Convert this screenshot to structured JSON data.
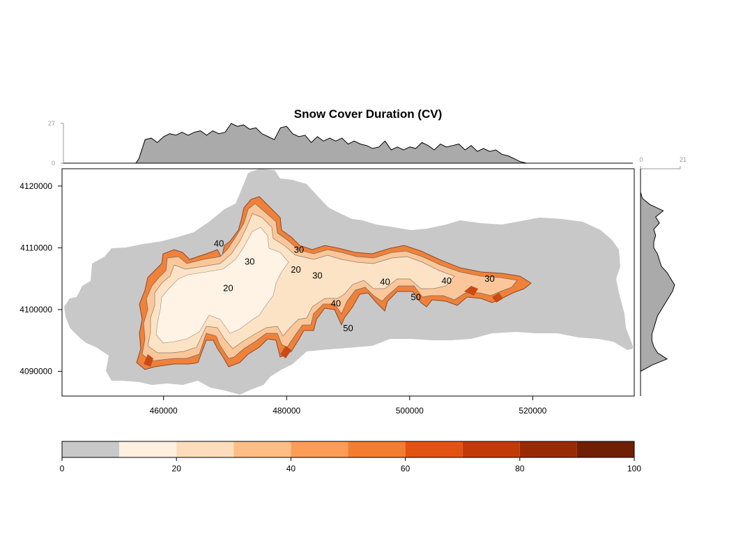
{
  "chart_data": {
    "type": "heatmap",
    "title": "Snow Cover Duration (CV)",
    "xlabel": "",
    "ylabel": "",
    "x_ticks": [
      460000,
      480000,
      500000,
      520000
    ],
    "x_tick_labels": [
      "460000",
      "480000",
      "500000",
      "520000"
    ],
    "y_ticks": [
      4090000,
      4100000,
      4110000,
      4120000
    ],
    "y_tick_labels": [
      "4090000",
      "4100000",
      "4110000",
      "4120000"
    ],
    "xlim": [
      443500,
      536500
    ],
    "ylim": [
      4086000,
      4122800
    ],
    "top_histogram": {
      "ylim": [
        0,
        27
      ],
      "tick_labels": [
        "0",
        "27"
      ],
      "x": [
        450000,
        455500,
        456000,
        457000,
        458000,
        459000,
        460000,
        461000,
        462000,
        463000,
        464000,
        465000,
        466000,
        467000,
        468000,
        469000,
        470000,
        471000,
        472000,
        473000,
        474000,
        475000,
        476000,
        477000,
        478000,
        479000,
        480000,
        481000,
        482000,
        483000,
        484000,
        485000,
        486000,
        487000,
        488000,
        489000,
        490000,
        491000,
        492000,
        493000,
        494000,
        495000,
        496000,
        497000,
        498000,
        499000,
        500000,
        501000,
        502000,
        503000,
        504000,
        505000,
        506000,
        507000,
        508000,
        509000,
        510000,
        511000,
        512000,
        513000,
        514000,
        515000,
        516000,
        517000,
        518000,
        519000
      ],
      "values": [
        0,
        0,
        3,
        16,
        17,
        14,
        18,
        20,
        19,
        21,
        19,
        21,
        22,
        19,
        22,
        20,
        21,
        27,
        25,
        26,
        23,
        24,
        20,
        18,
        16,
        24,
        25,
        20,
        18,
        19,
        14,
        18,
        15,
        17,
        15,
        17,
        13,
        15,
        13,
        12,
        10,
        11,
        15,
        9,
        11,
        9,
        11,
        10,
        14,
        12,
        9,
        13,
        11,
        12,
        13,
        9,
        12,
        8,
        10,
        8,
        9,
        6,
        5,
        3,
        1,
        0
      ]
    },
    "right_histogram": {
      "xlim": [
        0,
        21
      ],
      "tick_labels": [
        "0",
        "21"
      ],
      "y": [
        4119000,
        4118000,
        4117000,
        4116000,
        4115000,
        4114000,
        4113000,
        4112000,
        4111000,
        4110000,
        4109000,
        4108000,
        4107000,
        4106000,
        4105000,
        4104000,
        4103000,
        4102000,
        4101000,
        4100000,
        4099000,
        4098000,
        4097000,
        4096000,
        4095000,
        4094000,
        4093000,
        4092000,
        4091000,
        4090000
      ],
      "values": [
        0,
        1,
        5,
        12,
        8,
        10,
        7,
        8,
        7,
        7,
        9,
        10,
        11,
        14,
        16,
        18,
        17,
        15,
        13,
        11,
        9,
        8,
        7,
        6,
        6,
        7,
        9,
        14,
        6,
        0
      ]
    },
    "colorbar": {
      "breaks": [
        0,
        10,
        20,
        30,
        40,
        50,
        60,
        70,
        80,
        90,
        100
      ],
      "tick_values": [
        0,
        20,
        40,
        60,
        80,
        100
      ],
      "tick_labels": [
        "0",
        "20",
        "40",
        "60",
        "80",
        "100"
      ],
      "colors": [
        "#c8c8c8",
        "#fff0e0",
        "#fddcbc",
        "#fdbe85",
        "#fd9c55",
        "#f47d30",
        "#e25312",
        "#c23a08",
        "#9a2a06",
        "#701f05"
      ]
    },
    "contour_labels": [
      {
        "text": "40",
        "x": 469000,
        "y": 4110200
      },
      {
        "text": "30",
        "x": 474000,
        "y": 4107300
      },
      {
        "text": "20",
        "x": 470500,
        "y": 4103000
      },
      {
        "text": "30",
        "x": 482000,
        "y": 4109200
      },
      {
        "text": "20",
        "x": 481500,
        "y": 4106000
      },
      {
        "text": "30",
        "x": 485000,
        "y": 4105000
      },
      {
        "text": "40",
        "x": 488000,
        "y": 4100500
      },
      {
        "text": "50",
        "x": 490000,
        "y": 4096500
      },
      {
        "text": "40",
        "x": 496000,
        "y": 4104000
      },
      {
        "text": "50",
        "x": 501000,
        "y": 4101500
      },
      {
        "text": "40",
        "x": 506000,
        "y": 4104200
      },
      {
        "text": "30",
        "x": 513000,
        "y": 4104500
      }
    ]
  }
}
